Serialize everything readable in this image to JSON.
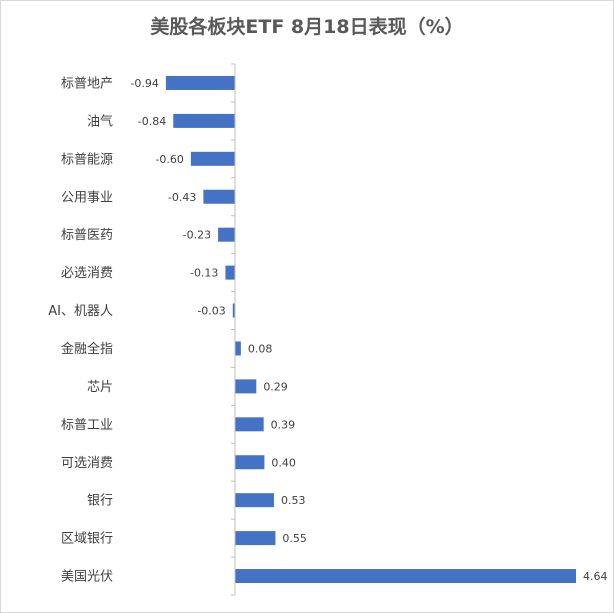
{
  "chart_data": {
    "type": "bar",
    "orientation": "horizontal",
    "title": "美股各板块ETF 8月18日表现（%）",
    "categories": [
      "标普地产",
      "油气",
      "标普能源",
      "公用事业",
      "标普医药",
      "必选消费",
      "AI、机器人",
      "金融全指",
      "芯片",
      "标普工业",
      "可选消费",
      "银行",
      "区域银行",
      "美国光伏"
    ],
    "values": [
      -0.94,
      -0.84,
      -0.6,
      -0.43,
      -0.23,
      -0.13,
      -0.03,
      0.08,
      0.29,
      0.39,
      0.4,
      0.53,
      0.55,
      4.64
    ],
    "value_labels": [
      "-0.94",
      "-0.84",
      "-0.60",
      "-0.43",
      "-0.23",
      "-0.13",
      "-0.03",
      "0.08",
      "0.29",
      "0.39",
      "0.40",
      "0.53",
      "0.55",
      "4.64"
    ],
    "xlabel": "",
    "ylabel": "",
    "xlim": [
      -1.0,
      4.64
    ],
    "grid": false,
    "legend": "none",
    "bar_color": "#4472C4"
  }
}
